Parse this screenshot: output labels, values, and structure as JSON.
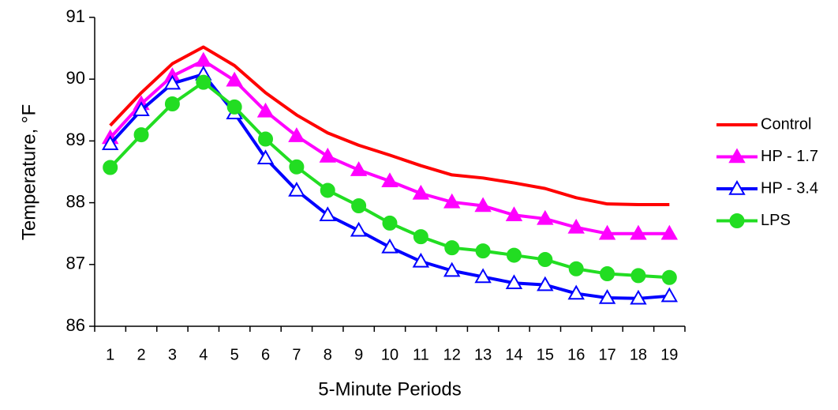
{
  "chart_data": {
    "type": "line",
    "x_label": "5-Minute Periods",
    "y_label": "Temperature, °F",
    "categories": [
      "1",
      "2",
      "3",
      "4",
      "5",
      "6",
      "7",
      "8",
      "9",
      "10",
      "11",
      "12",
      "13",
      "14",
      "15",
      "16",
      "17",
      "18",
      "19"
    ],
    "series": [
      {
        "name": "Control",
        "color": "#ff0000",
        "marker": "none",
        "values": [
          89.25,
          89.78,
          90.25,
          90.52,
          90.22,
          89.78,
          89.42,
          89.13,
          88.93,
          88.77,
          88.6,
          88.45,
          88.4,
          88.32,
          88.23,
          88.08,
          87.98,
          87.97,
          87.97
        ]
      },
      {
        "name": "HP - 1.7",
        "color": "#ff00ff",
        "marker": "triangle-filled",
        "values": [
          89.05,
          89.6,
          90.05,
          90.3,
          89.98,
          89.48,
          89.08,
          88.75,
          88.53,
          88.35,
          88.15,
          88.01,
          87.95,
          87.8,
          87.74,
          87.6,
          87.5,
          87.5,
          87.5
        ]
      },
      {
        "name": "HP - 3.4",
        "color": "#0000ff",
        "marker": "triangle-open",
        "values": [
          88.95,
          89.5,
          89.93,
          90.08,
          89.45,
          88.72,
          88.2,
          87.8,
          87.55,
          87.28,
          87.05,
          86.9,
          86.8,
          86.7,
          86.67,
          86.53,
          86.46,
          86.45,
          86.49
        ]
      },
      {
        "name": "LPS",
        "color": "#22dd22",
        "marker": "circle-filled",
        "values": [
          88.57,
          89.1,
          89.6,
          89.95,
          89.55,
          89.03,
          88.58,
          88.2,
          87.95,
          87.67,
          87.45,
          87.27,
          87.22,
          87.15,
          87.08,
          86.93,
          86.85,
          86.82,
          86.79
        ]
      }
    ],
    "ylim": [
      86,
      91
    ],
    "yticks": [
      86,
      87,
      88,
      89,
      90,
      91
    ],
    "grid": false,
    "legend": "right"
  }
}
